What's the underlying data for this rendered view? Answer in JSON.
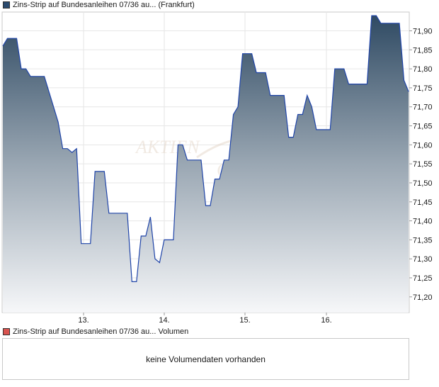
{
  "legend_price": {
    "label": "Zins-Strip auf Bundesanleihen 07/36 au...  (Frankfurt)",
    "color": "#2b4a6e"
  },
  "legend_volume": {
    "label": "Zins-Strip auf Bundesanleihen 07/36 au...  Volumen",
    "color": "#d9534f"
  },
  "watermark": {
    "text": "AKTIEN"
  },
  "volume_panel": {
    "message": "keine Volumendaten vorhanden"
  },
  "chart_data": {
    "type": "area",
    "xlabel": "",
    "ylabel": "",
    "x_ticks": [
      "13.",
      "14.",
      "15.",
      "16."
    ],
    "y_ticks": [
      "71,90",
      "71,85",
      "71,80",
      "71,75",
      "71,70",
      "71,65",
      "71,60",
      "71,55",
      "71,50",
      "71,45",
      "71,40",
      "71,35",
      "71,30",
      "71,25",
      "71,20"
    ],
    "ylim": [
      71.165,
      71.955
    ],
    "grid": true,
    "series": [
      {
        "values": [
          71.86,
          71.88,
          71.88,
          71.88,
          71.8,
          71.8,
          71.78,
          71.78,
          71.78,
          71.78,
          71.74,
          71.7,
          71.66,
          71.59,
          71.59,
          71.58,
          71.59,
          71.34,
          71.34,
          71.34,
          71.53,
          71.53,
          71.53,
          71.42,
          71.42,
          71.42,
          71.42,
          71.42,
          71.24,
          71.24,
          71.36,
          71.36,
          71.41,
          71.3,
          71.29,
          71.35,
          71.35,
          71.35,
          71.6,
          71.6,
          71.56,
          71.56,
          71.56,
          71.56,
          71.44,
          71.44,
          71.51,
          71.51,
          71.56,
          71.56,
          71.68,
          71.7,
          71.84,
          71.84,
          71.84,
          71.79,
          71.79,
          71.79,
          71.73,
          71.73,
          71.73,
          71.73,
          71.62,
          71.62,
          71.68,
          71.68,
          71.73,
          71.7,
          71.64,
          71.64,
          71.64,
          71.64,
          71.8,
          71.8,
          71.8,
          71.76,
          71.76,
          71.76,
          71.76,
          71.76,
          71.94,
          71.94,
          71.92,
          71.92,
          71.92,
          71.92,
          71.92,
          71.77,
          71.74
        ]
      }
    ]
  }
}
